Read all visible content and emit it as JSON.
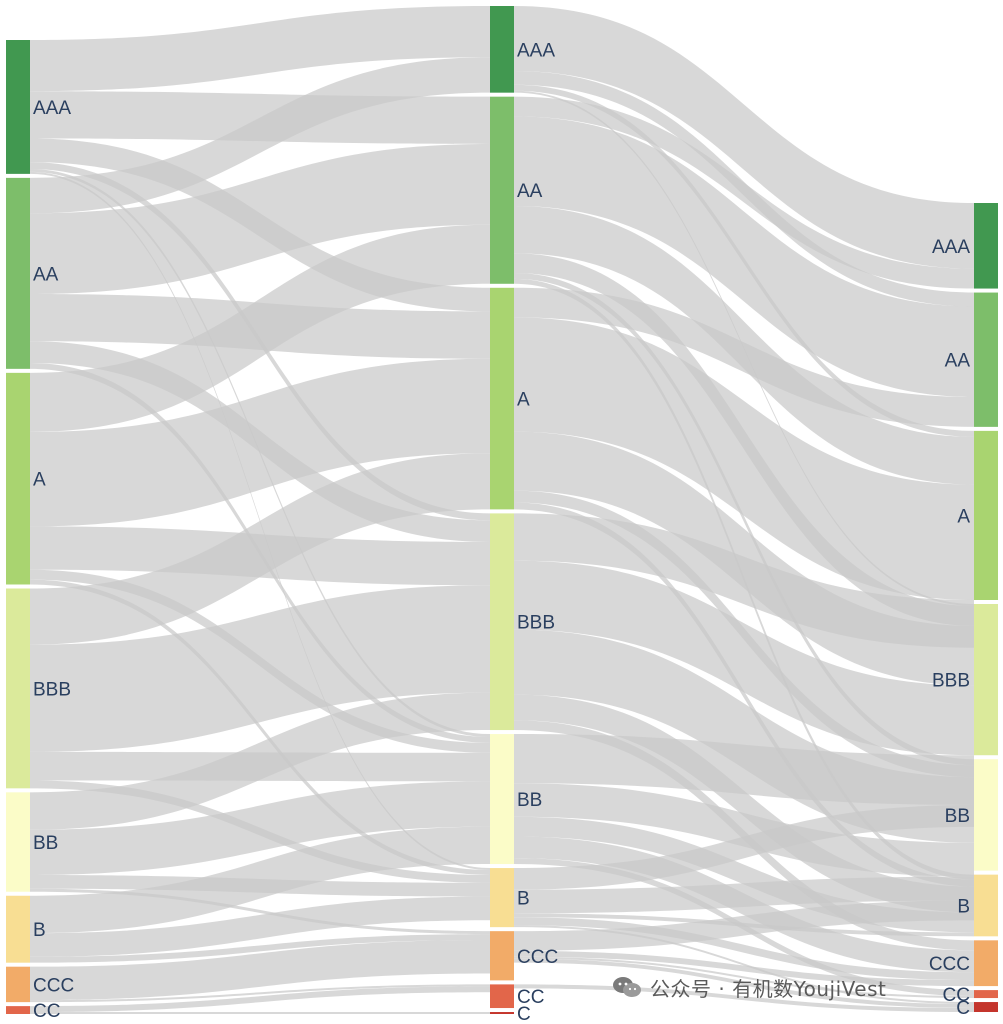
{
  "chart_data": {
    "type": "sankey",
    "stages": [
      {
        "nodes": [
          "AAA",
          "AA",
          "A",
          "BBB",
          "BB",
          "B",
          "CCC",
          "CC"
        ]
      },
      {
        "nodes": [
          "AAA",
          "AA",
          "A",
          "BBB",
          "BB",
          "B",
          "CCC",
          "CC",
          "C"
        ]
      },
      {
        "nodes": [
          "AAA",
          "AA",
          "A",
          "BBB",
          "BB",
          "B",
          "CCC",
          "CC",
          "C"
        ]
      }
    ],
    "node_values": [
      [
        136,
        194,
        215,
        203,
        101,
        68,
        36,
        8
      ],
      [
        88,
        190,
        225,
        220,
        132,
        60,
        50,
        24,
        2
      ],
      [
        86,
        135,
        170,
        152,
        112,
        62,
        46,
        8,
        10
      ]
    ],
    "links": [
      {
        "stage": 0,
        "flows": [
          {
            "source": "AAA",
            "target": "AAA",
            "value": 52
          },
          {
            "source": "AAA",
            "target": "AA",
            "value": 48
          },
          {
            "source": "AAA",
            "target": "A",
            "value": 24
          },
          {
            "source": "AAA",
            "target": "BBB",
            "value": 7
          },
          {
            "source": "AAA",
            "target": "BB",
            "value": 3
          },
          {
            "source": "AAA",
            "target": "B",
            "value": 2
          },
          {
            "source": "AA",
            "target": "AAA",
            "value": 36
          },
          {
            "source": "AA",
            "target": "AA",
            "value": 82
          },
          {
            "source": "AA",
            "target": "A",
            "value": 48
          },
          {
            "source": "AA",
            "target": "BBB",
            "value": 22
          },
          {
            "source": "AA",
            "target": "BB",
            "value": 6
          },
          {
            "source": "A",
            "target": "AA",
            "value": 60
          },
          {
            "source": "A",
            "target": "A",
            "value": 96
          },
          {
            "source": "A",
            "target": "BBB",
            "value": 44
          },
          {
            "source": "A",
            "target": "BB",
            "value": 10
          },
          {
            "source": "A",
            "target": "B",
            "value": 5
          },
          {
            "source": "BBB",
            "target": "A",
            "value": 57
          },
          {
            "source": "BBB",
            "target": "BBB",
            "value": 109
          },
          {
            "source": "BBB",
            "target": "BB",
            "value": 29
          },
          {
            "source": "BBB",
            "target": "B",
            "value": 8
          },
          {
            "source": "BB",
            "target": "BBB",
            "value": 38
          },
          {
            "source": "BB",
            "target": "BB",
            "value": 46
          },
          {
            "source": "BB",
            "target": "B",
            "value": 14
          },
          {
            "source": "BB",
            "target": "CCC",
            "value": 3
          },
          {
            "source": "B",
            "target": "BB",
            "value": 38
          },
          {
            "source": "B",
            "target": "B",
            "value": 24
          },
          {
            "source": "B",
            "target": "CCC",
            "value": 6
          },
          {
            "source": "CCC",
            "target": "CCC",
            "value": 34
          },
          {
            "source": "CCC",
            "target": "CC",
            "value": 2
          },
          {
            "source": "CC",
            "target": "CC",
            "value": 6
          },
          {
            "source": "CC",
            "target": "C",
            "value": 2
          }
        ]
      },
      {
        "stage": 1,
        "flows": [
          {
            "source": "AAA",
            "target": "AAA",
            "value": 66
          },
          {
            "source": "AAA",
            "target": "AA",
            "value": 14
          },
          {
            "source": "AAA",
            "target": "A",
            "value": 6
          },
          {
            "source": "AAA",
            "target": "BBB",
            "value": 2
          },
          {
            "source": "AA",
            "target": "AAA",
            "value": 20
          },
          {
            "source": "AA",
            "target": "AA",
            "value": 91
          },
          {
            "source": "AA",
            "target": "A",
            "value": 48
          },
          {
            "source": "AA",
            "target": "BBB",
            "value": 20
          },
          {
            "source": "AA",
            "target": "BB",
            "value": 6
          },
          {
            "source": "AA",
            "target": "B",
            "value": 5
          },
          {
            "source": "A",
            "target": "AA",
            "value": 30
          },
          {
            "source": "A",
            "target": "A",
            "value": 116
          },
          {
            "source": "A",
            "target": "BBB",
            "value": 60
          },
          {
            "source": "A",
            "target": "BB",
            "value": 12
          },
          {
            "source": "A",
            "target": "B",
            "value": 7
          },
          {
            "source": "BBB",
            "target": "A",
            "value": 48
          },
          {
            "source": "BBB",
            "target": "BBB",
            "value": 70
          },
          {
            "source": "BBB",
            "target": "BB",
            "value": 66
          },
          {
            "source": "BBB",
            "target": "B",
            "value": 26
          },
          {
            "source": "BBB",
            "target": "CCC",
            "value": 10
          },
          {
            "source": "BB",
            "target": "BBB",
            "value": 50
          },
          {
            "source": "BB",
            "target": "BB",
            "value": 34
          },
          {
            "source": "BB",
            "target": "B",
            "value": 20
          },
          {
            "source": "BB",
            "target": "CCC",
            "value": 22
          },
          {
            "source": "BB",
            "target": "CC",
            "value": 6
          },
          {
            "source": "B",
            "target": "BBB",
            "value": 22
          },
          {
            "source": "B",
            "target": "BB",
            "value": 24
          },
          {
            "source": "B",
            "target": "B",
            "value": 4
          },
          {
            "source": "B",
            "target": "CCC",
            "value": 8
          },
          {
            "source": "B",
            "target": "C",
            "value": 2
          },
          {
            "source": "CCC",
            "target": "BBB",
            "value": 0
          },
          {
            "source": "CCC",
            "target": "BB",
            "value": 20
          },
          {
            "source": "CCC",
            "target": "CCC",
            "value": 6
          },
          {
            "source": "CCC",
            "target": "CC",
            "value": 2
          },
          {
            "source": "CCC",
            "target": "C",
            "value": 4
          },
          {
            "source": "CC",
            "target": "CC",
            "value": 0
          },
          {
            "source": "CC",
            "target": "C",
            "value": 4
          },
          {
            "source": "C",
            "target": "C",
            "value": 0
          }
        ]
      }
    ],
    "colors": {
      "AAA": "#419850",
      "AA": "#7dbe6a",
      "A": "#a9d470",
      "BBB": "#dbea9b",
      "BB": "#fbfcc8",
      "B": "#f8de93",
      "CCC": "#f2ab68",
      "CC": "#e2664a",
      "C": "#c4352c",
      "link": "#c9c9c9"
    }
  },
  "watermark": {
    "text": "公众号 · 有机数YoujiVest",
    "icon": "wechat-icon"
  }
}
